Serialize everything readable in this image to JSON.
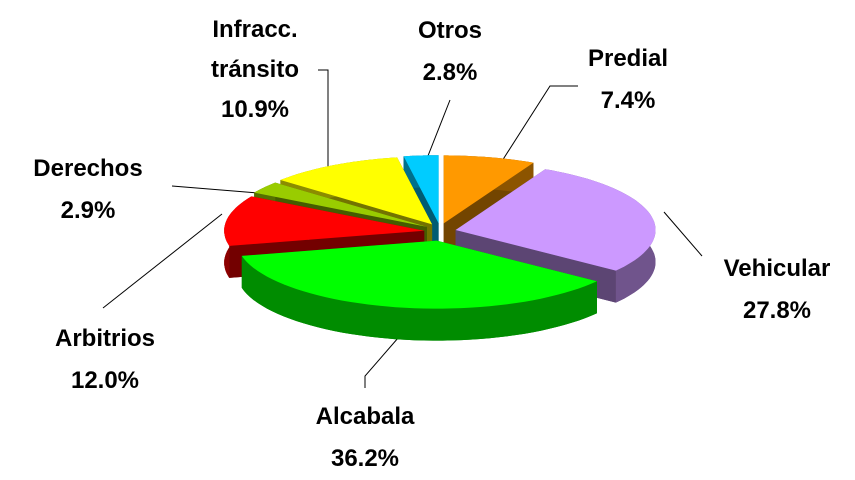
{
  "chart_data": {
    "type": "pie",
    "categories": [
      "Predial",
      "Vehicular",
      "Alcabala",
      "Arbitrios",
      "Derechos",
      "Infracc. tránsito",
      "Otros"
    ],
    "values": [
      7.4,
      27.8,
      36.2,
      12.0,
      2.9,
      10.9,
      2.8
    ],
    "value_labels": [
      "7.4%",
      "27.8%",
      "36.2%",
      "12.0%",
      "2.9%",
      "10.9%",
      "2.8%"
    ],
    "colors": [
      "#ff9900",
      "#cc99ff",
      "#00ff00",
      "#ff0000",
      "#99cc00",
      "#ffff00",
      "#00ccff"
    ]
  }
}
